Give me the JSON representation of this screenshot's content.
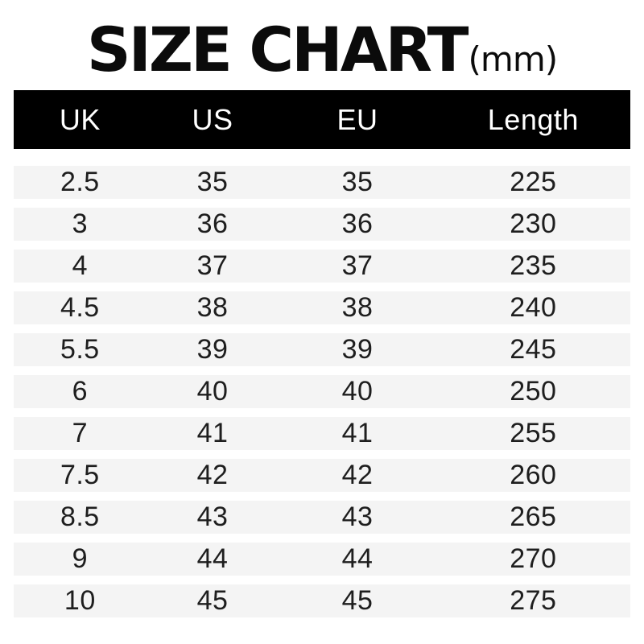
{
  "title": {
    "main": "SIZE CHART",
    "unit": "(mm)"
  },
  "colors": {
    "page_bg": "#ffffff",
    "header_bg": "#000000",
    "header_text": "#ffffff",
    "row_bg": "#f4f4f4",
    "text": "#1e1e1e"
  },
  "chart_data": {
    "type": "table",
    "title": "SIZE CHART (mm)",
    "length_unit": "mm",
    "columns": [
      "UK",
      "US",
      "EU",
      "Length"
    ],
    "rows": [
      [
        "2.5",
        "35",
        "35",
        "225"
      ],
      [
        "3",
        "36",
        "36",
        "230"
      ],
      [
        "4",
        "37",
        "37",
        "235"
      ],
      [
        "4.5",
        "38",
        "38",
        "240"
      ],
      [
        "5.5",
        "39",
        "39",
        "245"
      ],
      [
        "6",
        "40",
        "40",
        "250"
      ],
      [
        "7",
        "41",
        "41",
        "255"
      ],
      [
        "7.5",
        "42",
        "42",
        "260"
      ],
      [
        "8.5",
        "43",
        "43",
        "265"
      ],
      [
        "9",
        "44",
        "44",
        "270"
      ],
      [
        "10",
        "45",
        "45",
        "275"
      ]
    ]
  }
}
